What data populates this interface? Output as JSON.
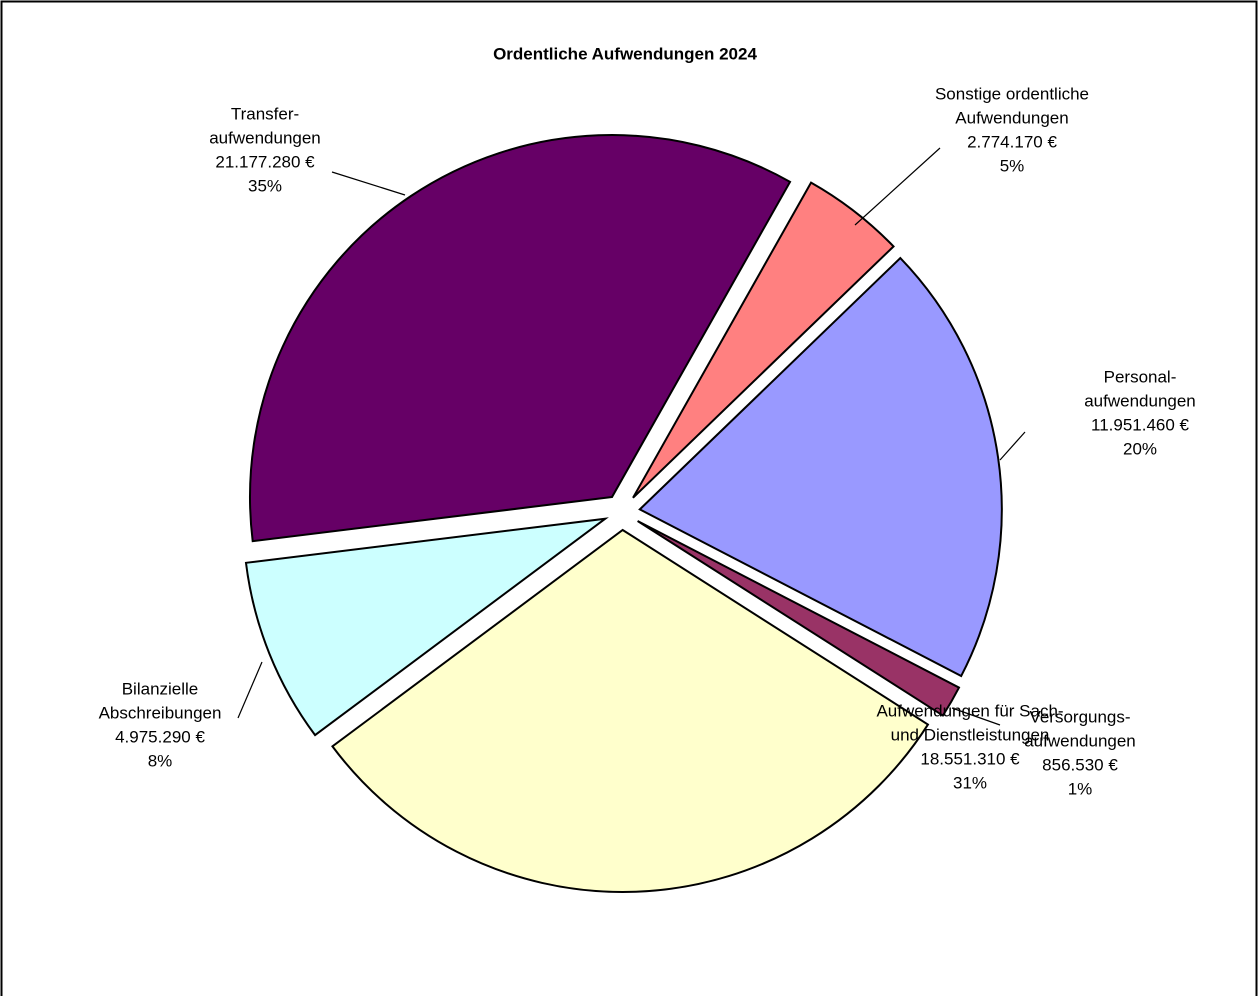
{
  "chart_data": {
    "type": "pie",
    "title": "Ordentliche Aufwendungen 2024",
    "categories": [
      [
        "Transfer-",
        "aufwendungen"
      ],
      [
        "Sonstige ordentliche",
        "Aufwendungen"
      ],
      [
        "Personal-",
        "aufwendungen"
      ],
      [
        "Versorgungs-",
        "aufwendungen"
      ],
      [
        "Aufwendungen für Sach-",
        "und Dienstleistungen"
      ],
      [
        "Bilanzielle",
        "Abschreibungen"
      ]
    ],
    "values": [
      21177280,
      2774170,
      11951460,
      856530,
      18551310,
      4975290
    ],
    "value_labels": [
      "21.177.280 €",
      "2.774.170 €",
      "11.951.460 €",
      "856.530 €",
      "18.551.310 €",
      "4.975.290 €"
    ],
    "percent_labels": [
      "35%",
      "5%",
      "20%",
      "1%",
      "31%",
      "8%"
    ],
    "colors": [
      "#660066",
      "#ff8080",
      "#9999ff",
      "#993366",
      "#ffffcc",
      "#ccffff"
    ]
  }
}
